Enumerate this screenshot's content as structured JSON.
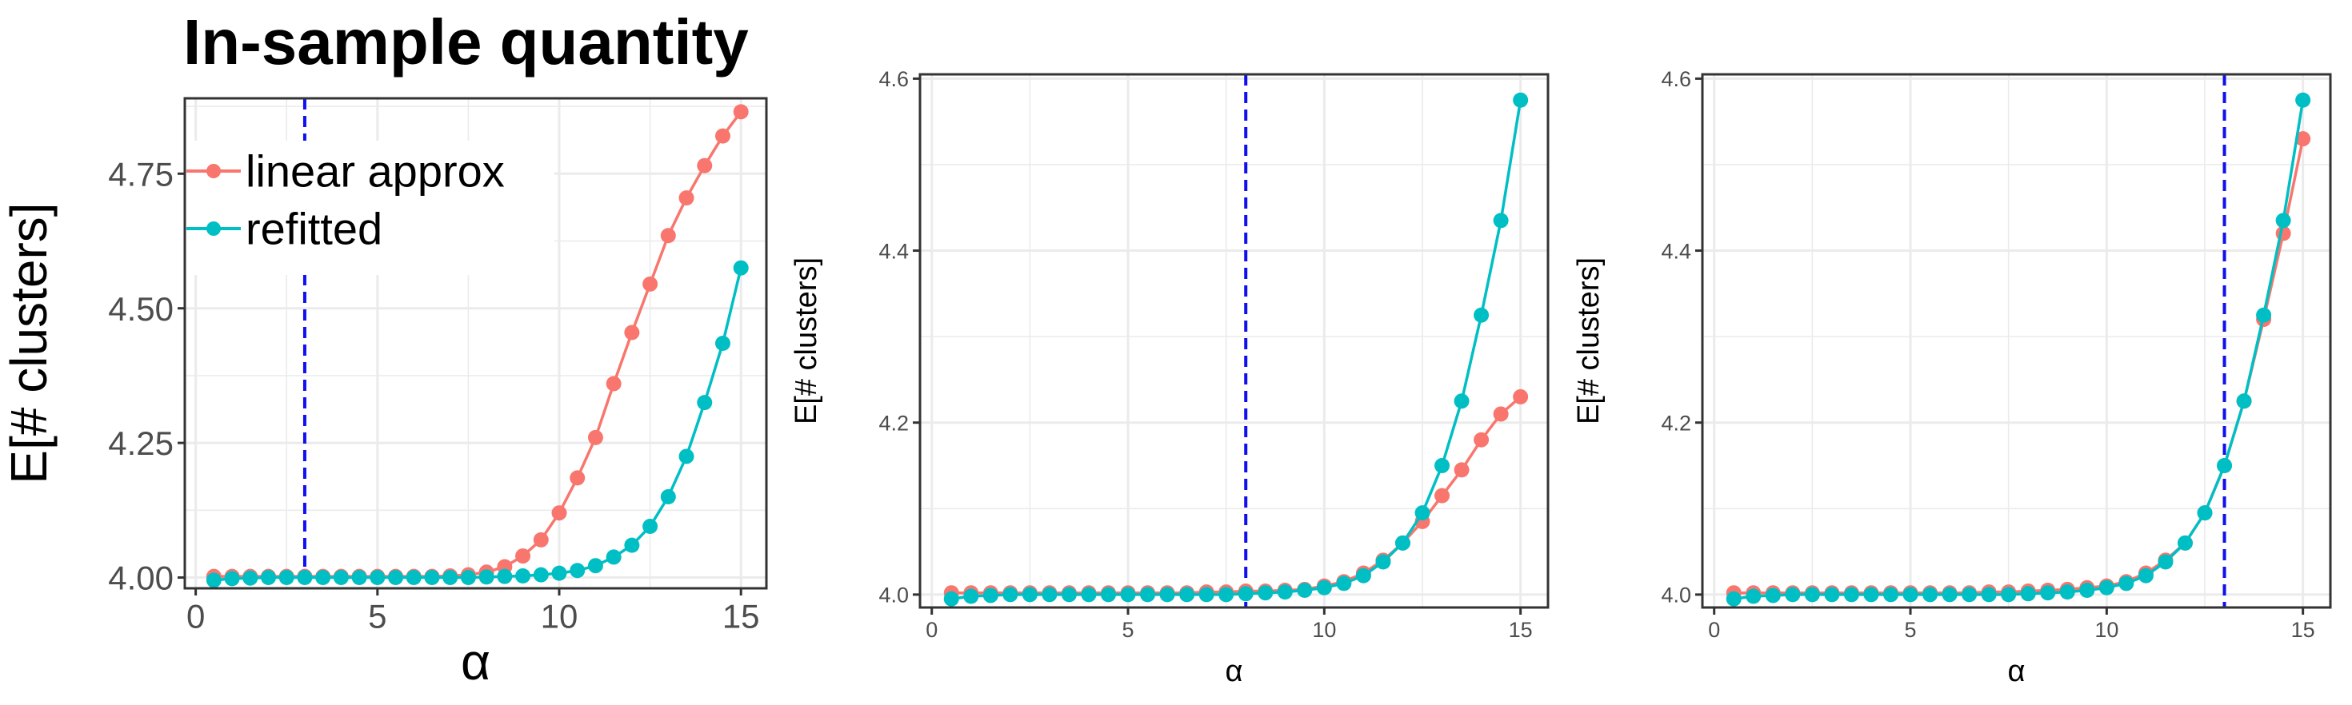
{
  "colors": {
    "linear_approx": "#F8766D",
    "refitted": "#00BFC4",
    "vline": "#1010EE",
    "grid": "#EBEBEB",
    "border": "#333333"
  },
  "chart_data": [
    {
      "type": "line",
      "title": "In-sample quantity",
      "xlabel": "α",
      "ylabel": "E[# clusters]",
      "xlim": [
        -0.3,
        15.7
      ],
      "ylim": [
        3.98,
        4.89
      ],
      "xticks": [
        0,
        5,
        10,
        15
      ],
      "xtick_labels": [
        "0",
        "5",
        "10",
        "15"
      ],
      "yticks": [
        4.0,
        4.25,
        4.5,
        4.75
      ],
      "ytick_labels": [
        "4.00",
        "4.25",
        "4.50",
        "4.75"
      ],
      "vline": 3,
      "grid": true,
      "legend": {
        "placement": "top-left",
        "entries": [
          "linear approx",
          "refitted"
        ]
      },
      "x": [
        0.5,
        1.0,
        1.5,
        2.0,
        2.5,
        3.0,
        3.5,
        4.0,
        4.5,
        5.0,
        5.5,
        6.0,
        6.5,
        7.0,
        7.5,
        8.0,
        8.5,
        9.0,
        9.5,
        10.0,
        10.5,
        11.0,
        11.5,
        12.0,
        12.5,
        13.0,
        13.5,
        14.0,
        14.5,
        15.0
      ],
      "series": [
        {
          "name": "linear approx",
          "values": [
            4.002,
            4.002,
            4.002,
            4.002,
            4.002,
            4.002,
            4.002,
            4.002,
            4.002,
            4.002,
            4.002,
            4.002,
            4.002,
            4.003,
            4.005,
            4.01,
            4.02,
            4.04,
            4.07,
            4.12,
            4.185,
            4.26,
            4.36,
            4.455,
            4.545,
            4.635,
            4.705,
            4.765,
            4.82,
            4.865
          ]
        },
        {
          "name": "refitted",
          "values": [
            3.995,
            3.998,
            3.999,
            4.0,
            4.0,
            4.0,
            4.0,
            4.0,
            4.0,
            4.0,
            4.0,
            4.0,
            4.0,
            4.0,
            4.0,
            4.001,
            4.002,
            4.003,
            4.005,
            4.008,
            4.013,
            4.022,
            4.038,
            4.06,
            4.095,
            4.15,
            4.225,
            4.325,
            4.435,
            4.575
          ]
        }
      ]
    },
    {
      "type": "line",
      "xlabel": "α",
      "ylabel": "E[# clusters]",
      "xlim": [
        -0.3,
        15.7
      ],
      "ylim": [
        3.985,
        4.605
      ],
      "xticks": [
        0,
        5,
        10,
        15
      ],
      "xtick_labels": [
        "0",
        "5",
        "10",
        "15"
      ],
      "yticks": [
        4.0,
        4.2,
        4.4,
        4.6
      ],
      "ytick_labels": [
        "4.0",
        "4.2",
        "4.4",
        "4.6"
      ],
      "vline": 8,
      "grid": true,
      "x": [
        0.5,
        1.0,
        1.5,
        2.0,
        2.5,
        3.0,
        3.5,
        4.0,
        4.5,
        5.0,
        5.5,
        6.0,
        6.5,
        7.0,
        7.5,
        8.0,
        8.5,
        9.0,
        9.5,
        10.0,
        10.5,
        11.0,
        11.5,
        12.0,
        12.5,
        13.0,
        13.5,
        14.0,
        14.5,
        15.0
      ],
      "series": [
        {
          "name": "linear approx",
          "values": [
            4.002,
            4.002,
            4.002,
            4.002,
            4.002,
            4.002,
            4.002,
            4.002,
            4.002,
            4.002,
            4.002,
            4.002,
            4.002,
            4.003,
            4.003,
            4.004,
            4.004,
            4.005,
            4.006,
            4.01,
            4.015,
            4.025,
            4.04,
            4.06,
            4.085,
            4.115,
            4.145,
            4.18,
            4.21,
            4.23
          ]
        },
        {
          "name": "refitted",
          "values": [
            3.995,
            3.998,
            3.999,
            4.0,
            4.0,
            4.0,
            4.0,
            4.0,
            4.0,
            4.0,
            4.0,
            4.0,
            4.0,
            4.0,
            4.0,
            4.001,
            4.002,
            4.003,
            4.005,
            4.008,
            4.013,
            4.022,
            4.038,
            4.06,
            4.095,
            4.15,
            4.225,
            4.325,
            4.435,
            4.575
          ]
        }
      ]
    },
    {
      "type": "line",
      "xlabel": "α",
      "ylabel": "E[# clusters]",
      "xlim": [
        -0.3,
        15.7
      ],
      "ylim": [
        3.985,
        4.605
      ],
      "xticks": [
        0,
        5,
        10,
        15
      ],
      "xtick_labels": [
        "0",
        "5",
        "10",
        "15"
      ],
      "yticks": [
        4.0,
        4.2,
        4.4,
        4.6
      ],
      "ytick_labels": [
        "4.0",
        "4.2",
        "4.4",
        "4.6"
      ],
      "vline": 13,
      "grid": true,
      "x": [
        0.5,
        1.0,
        1.5,
        2.0,
        2.5,
        3.0,
        3.5,
        4.0,
        4.5,
        5.0,
        5.5,
        6.0,
        6.5,
        7.0,
        7.5,
        8.0,
        8.5,
        9.0,
        9.5,
        10.0,
        10.5,
        11.0,
        11.5,
        12.0,
        12.5,
        13.0,
        13.5,
        14.0,
        14.5,
        15.0
      ],
      "series": [
        {
          "name": "linear approx",
          "values": [
            4.002,
            4.002,
            4.002,
            4.002,
            4.002,
            4.002,
            4.002,
            4.002,
            4.002,
            4.002,
            4.002,
            4.002,
            4.002,
            4.003,
            4.003,
            4.004,
            4.005,
            4.006,
            4.008,
            4.01,
            4.015,
            4.025,
            4.04,
            4.06,
            4.095,
            4.15,
            4.225,
            4.32,
            4.42,
            4.53
          ]
        },
        {
          "name": "refitted",
          "values": [
            3.995,
            3.998,
            3.999,
            4.0,
            4.0,
            4.0,
            4.0,
            4.0,
            4.0,
            4.0,
            4.0,
            4.0,
            4.0,
            4.0,
            4.0,
            4.001,
            4.002,
            4.003,
            4.005,
            4.008,
            4.013,
            4.022,
            4.038,
            4.06,
            4.095,
            4.15,
            4.225,
            4.325,
            4.435,
            4.575
          ]
        }
      ]
    }
  ]
}
